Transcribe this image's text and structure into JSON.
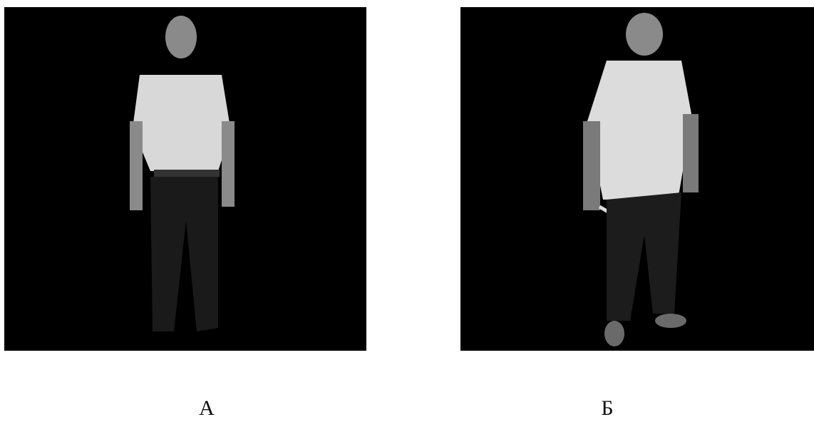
{
  "figures": [
    {
      "label": "А"
    },
    {
      "label": "Б"
    }
  ]
}
